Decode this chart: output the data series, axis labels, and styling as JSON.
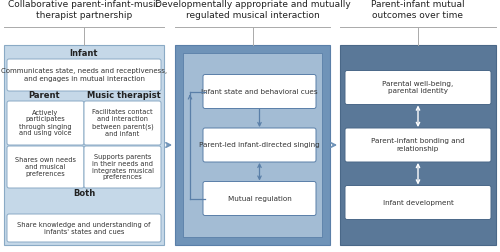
{
  "bg_color": "#ffffff",
  "title1": "Collaborative parent-infant-music\ntherapist partnership",
  "title2": "Developmentally appropriate and mutually\nregulated musical interaction",
  "title3": "Parent-infant mutual\noutcomes over time",
  "p1_bg": "#c5d8e8",
  "p1_border": "#8aaac5",
  "p2_outer_bg": "#6f93b8",
  "p2_inner_bg": "#a3bcd4",
  "p2_border": "#5a7fa8",
  "p3_bg": "#5a7898",
  "p3_border": "#4a6888",
  "white": "#ffffff",
  "arrow_blue": "#6f93b8",
  "arrow_white": "#ffffff",
  "text_dark": "#333333",
  "line_color": "#aaaaaa",
  "infant_label": "Infant",
  "infant_box": "Communicates state, needs and receptiveness,\nand engages in mutual interaction",
  "parent_label": "Parent",
  "music_label": "Music therapist",
  "parent_box1": "Actively\nparticipates\nthrough singing\nand using voice",
  "music_box1": "Facilitates contact\nand interaction\nbetween parent(s)\nand infant",
  "parent_box2": "Shares own needs\nand musical\npreferences",
  "music_box2": "Supports parents\nin their needs and\nintegrates musical\npreferences",
  "both_label": "Both",
  "both_box": "Share knowledge and understanding of\ninfants' states and cues",
  "p2_box1": "Infant state and behavioral cues",
  "p2_box2": "Parent-led infant-directed singing",
  "p2_box3": "Mutual regulation",
  "p3_box1": "Parental well-being,\nparental identity",
  "p3_box2": "Parent-infant bonding and\nrelationship",
  "p3_box3": "Infant development"
}
